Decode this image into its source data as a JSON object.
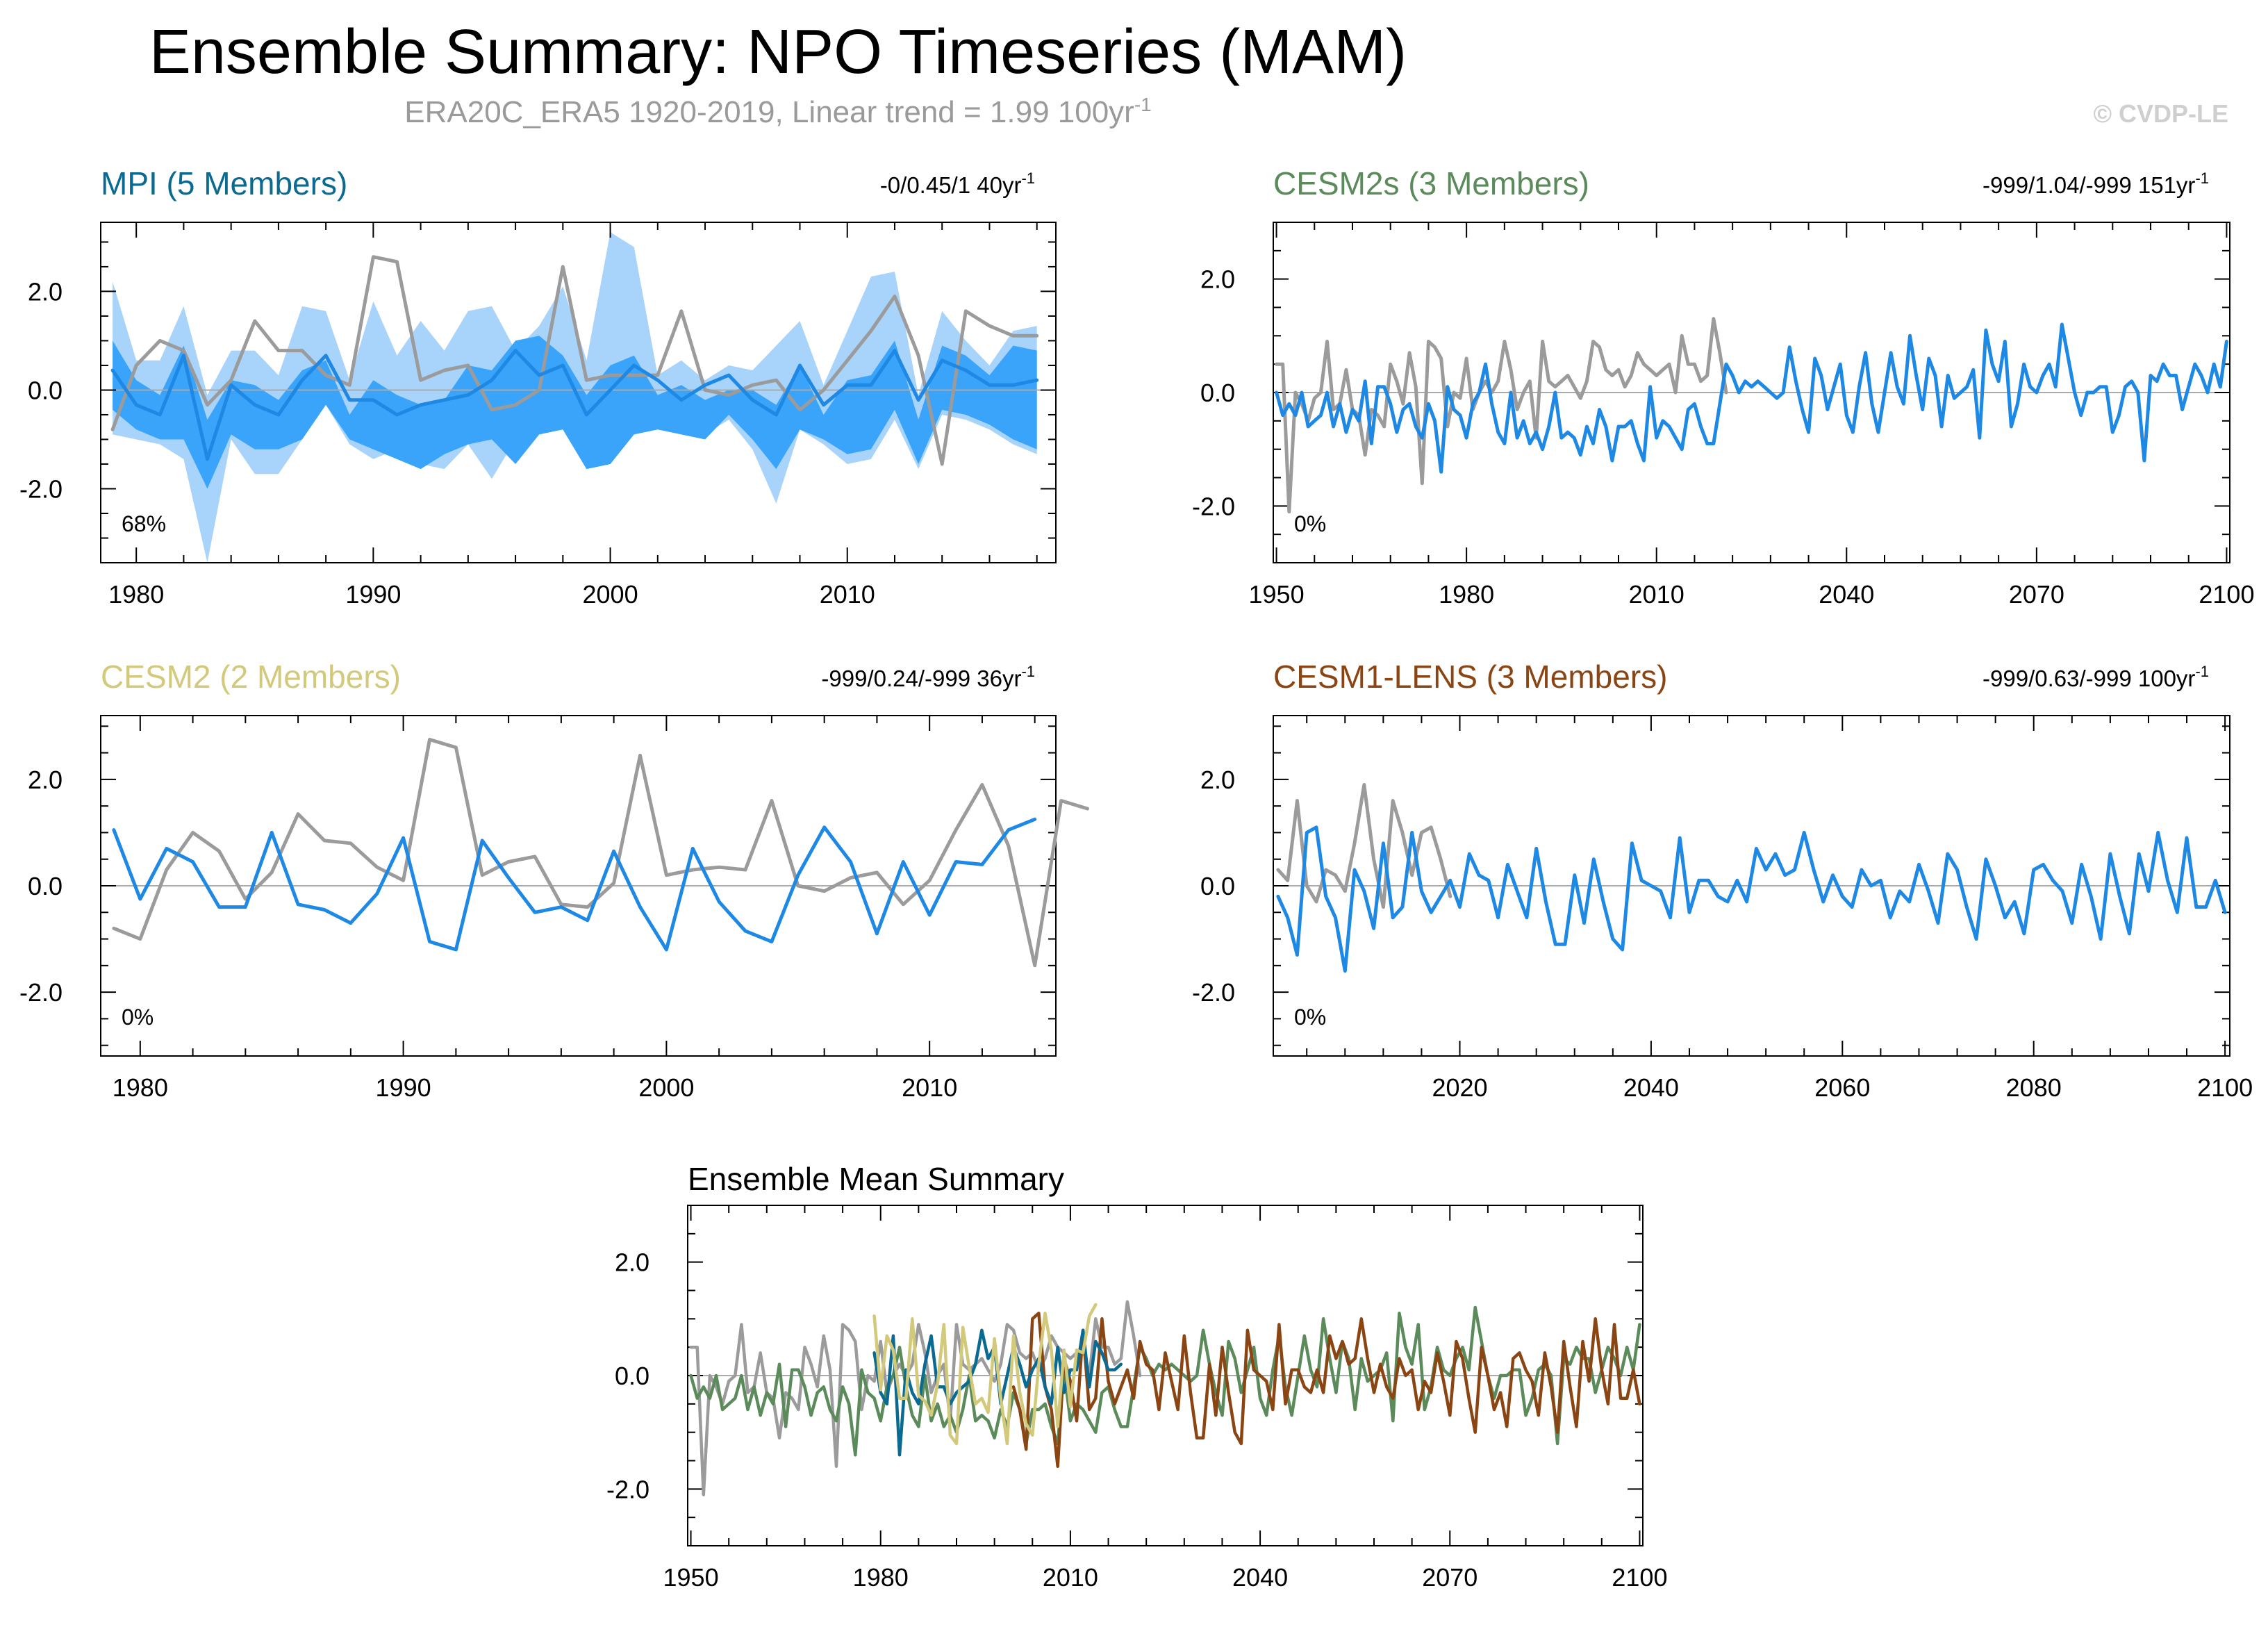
{
  "title": "Ensemble Summary: NPO Timeseries (MAM)",
  "subtitle": "ERA20C_ERA5 1920-2019, Linear trend = 1.99 100yr",
  "subtitle_sup": "-1",
  "copyright": "© CVDP-LE",
  "colors": {
    "obs": "#9b9b9b",
    "ens_mean_line": "#1e88e5",
    "band_outer": "#a8d4fb",
    "band_inner": "#3aa3fa",
    "zero_line": "#aaaaaa",
    "MPI": "#0b6a92",
    "CESM2s": "#5b8a5b",
    "CESM2": "#d3c97a",
    "CESM1-LENS": "#8a4513"
  },
  "chart_data": [
    {
      "type": "line",
      "name": "MPI",
      "title": "MPI (5 Members)",
      "stats": "-0/0.45/1 40yr",
      "stats_sup": "-1",
      "pct_label": "68%",
      "xlim": [
        1978.5,
        2018.8
      ],
      "ylim": [
        -3.5,
        3.4
      ],
      "xticks": [
        1980,
        1990,
        2000,
        2010
      ],
      "yticks": [
        2.0,
        0.0,
        -2.0
      ],
      "ytick_labels": [
        "2.0",
        "0.0",
        "-2.0"
      ],
      "x": [
        1979,
        1980,
        1981,
        1982,
        1983,
        1984,
        1985,
        1986,
        1987,
        1988,
        1989,
        1990,
        1991,
        1992,
        1993,
        1994,
        1995,
        1996,
        1997,
        1998,
        1999,
        2000,
        2001,
        2002,
        2003,
        2004,
        2005,
        2006,
        2007,
        2008,
        2009,
        2010,
        2011,
        2012,
        2013,
        2014,
        2015,
        2016,
        2017,
        2018
      ],
      "band_outer_upper": [
        2.2,
        0.6,
        0.6,
        1.7,
        -0.1,
        0.8,
        0.8,
        0.3,
        1.7,
        1.6,
        0.2,
        1.8,
        0.7,
        1.4,
        0.8,
        1.6,
        1.7,
        0.8,
        1.3,
        2.1,
        0.6,
        3.2,
        2.9,
        0.3,
        0.6,
        0.2,
        0.5,
        0.4,
        0.9,
        1.4,
        0.1,
        1.2,
        2.3,
        2.4,
        -0.1,
        1.6,
        1.0,
        0.5,
        1.2,
        1.3
      ],
      "band_inner_upper": [
        1.0,
        0.2,
        -0.1,
        0.9,
        -0.6,
        0.2,
        0.1,
        -0.2,
        0.4,
        0.6,
        -0.5,
        0.2,
        -0.1,
        -0.3,
        -0.2,
        0.5,
        0.4,
        1.0,
        1.1,
        0.7,
        -0.1,
        0.5,
        0.7,
        -0.1,
        0.1,
        -0.2,
        0.0,
        0.0,
        -0.3,
        0.5,
        -0.5,
        0.2,
        0.3,
        1.0,
        -0.6,
        0.9,
        0.7,
        0.3,
        0.9,
        0.8
      ],
      "band_inner_lower": [
        -0.4,
        -0.8,
        -1.0,
        -1.0,
        -2.0,
        -0.9,
        -1.2,
        -1.2,
        -1.0,
        -0.3,
        -1.0,
        -1.2,
        -1.4,
        -1.6,
        -1.3,
        -1.1,
        -1.0,
        -1.5,
        -0.9,
        -0.8,
        -1.6,
        -1.5,
        -0.9,
        -0.8,
        -0.9,
        -1.0,
        -0.5,
        -1.0,
        -1.6,
        -0.8,
        -1.0,
        -1.3,
        -1.2,
        -0.4,
        -1.5,
        -0.4,
        -0.5,
        -0.7,
        -1.0,
        -1.2
      ],
      "band_outer_lower": [
        -0.9,
        -1.0,
        -1.1,
        -1.4,
        -3.5,
        -1.0,
        -1.7,
        -1.7,
        -1.0,
        -0.3,
        -1.1,
        -1.4,
        -1.2,
        -1.5,
        -1.6,
        -1.1,
        -1.8,
        -1.0,
        -0.6,
        -0.8,
        -1.6,
        -1.5,
        -0.8,
        -0.7,
        -0.8,
        -0.9,
        -0.6,
        -1.2,
        -2.3,
        -0.8,
        -1.1,
        -1.5,
        -1.4,
        -0.6,
        -1.6,
        -0.5,
        -0.6,
        -0.8,
        -1.1,
        -1.3
      ],
      "ens_mean": [
        0.4,
        -0.3,
        -0.5,
        0.7,
        -1.4,
        0.1,
        -0.3,
        -0.5,
        0.2,
        0.7,
        -0.2,
        -0.2,
        -0.5,
        -0.3,
        -0.2,
        -0.1,
        0.2,
        0.8,
        0.3,
        0.5,
        -0.5,
        0.0,
        0.5,
        0.2,
        -0.2,
        0.1,
        0.3,
        -0.2,
        -0.5,
        0.5,
        -0.3,
        0.1,
        0.1,
        0.8,
        -0.2,
        0.6,
        0.4,
        0.1,
        0.1,
        0.2
      ],
      "obs": [
        -0.8,
        0.5,
        1.0,
        0.8,
        -0.3,
        0.2,
        1.4,
        0.8,
        0.8,
        0.3,
        0.1,
        2.7,
        2.6,
        0.2,
        0.4,
        0.5,
        -0.4,
        -0.3,
        0.0,
        2.5,
        0.2,
        0.3,
        0.3,
        0.3,
        1.6,
        0.0,
        -0.1,
        0.1,
        0.2,
        -0.4,
        0.0,
        0.6,
        1.2,
        1.9,
        0.7,
        -1.5,
        1.6,
        1.3,
        1.1,
        1.1
      ]
    },
    {
      "type": "line",
      "name": "CESM2s",
      "title": "CESM2s (3 Members)",
      "stats": "-999/1.04/-999 151yr",
      "stats_sup": "-1",
      "pct_label": "0%",
      "xlim": [
        1949.5,
        2100.5
      ],
      "ylim": [
        -3.0,
        3.0
      ],
      "xticks": [
        1950,
        1980,
        2010,
        2040,
        2070,
        2100
      ],
      "yticks": [
        2.0,
        0.0,
        -2.0
      ],
      "ytick_labels": [
        "2.0",
        "0.0",
        "-2.0"
      ],
      "x_start": 1950,
      "ens_mean": [
        0.0,
        -0.4,
        -0.2,
        -0.4,
        0.0,
        -0.6,
        -0.5,
        -0.4,
        0.0,
        -0.6,
        -0.2,
        -0.7,
        -0.3,
        -0.5,
        0.2,
        -0.9,
        0.1,
        0.1,
        -0.2,
        -0.7,
        -0.3,
        -0.2,
        -0.6,
        -0.8,
        -0.2,
        -0.5,
        -1.4,
        0.1,
        -0.3,
        -0.4,
        -0.8,
        -0.2,
        0.0,
        0.5,
        -0.2,
        -0.7,
        -0.9,
        0.0,
        -0.8,
        -0.5,
        -0.9,
        -0.7,
        -1.0,
        -0.6,
        0.0,
        -0.8,
        -0.7,
        -0.8,
        -1.1,
        -0.6,
        -0.9,
        -0.3,
        -0.6,
        -1.2,
        -0.6,
        -0.6,
        -0.5,
        -0.9,
        -1.2,
        0.1,
        -0.8,
        -0.5,
        -0.6,
        -0.8,
        -1.0,
        -0.3,
        -0.2,
        -0.6,
        -0.9,
        -0.9,
        -0.2,
        0.5,
        0.3,
        0.0,
        0.2,
        0.1,
        0.2,
        0.1,
        0.0,
        -0.1,
        0.0,
        0.8,
        0.2,
        -0.3,
        -0.7,
        0.6,
        0.3,
        -0.3,
        0.1,
        0.5,
        -0.4,
        -0.7,
        0.1,
        0.7,
        -0.2,
        -0.7,
        0.0,
        0.7,
        0.1,
        -0.2,
        1.0,
        0.3,
        -0.3,
        0.6,
        0.3,
        -0.6,
        0.3,
        -0.1,
        0.0,
        0.1,
        0.4,
        -0.8,
        1.1,
        0.5,
        0.2,
        0.9,
        -0.6,
        -0.2,
        0.5,
        0.1,
        0.0,
        0.3,
        0.5,
        0.1,
        1.2,
        0.6,
        0.0,
        -0.4,
        0.0,
        0.0,
        0.1,
        0.1,
        -0.7,
        -0.4,
        0.1,
        0.2,
        0.0,
        -1.2,
        0.3,
        0.2,
        0.5,
        0.3,
        0.3,
        -0.3,
        0.1,
        0.5,
        0.3,
        0.0,
        0.5,
        0.1,
        0.9
      ],
      "obs_x_start": 1950,
      "obs": [
        0.5,
        0.5,
        -2.1,
        0.0,
        -0.2,
        -0.5,
        -0.1,
        0.0,
        0.9,
        -0.3,
        -0.2,
        0.4,
        -0.3,
        -0.4,
        -1.1,
        -0.3,
        -0.4,
        -0.6,
        0.5,
        0.2,
        -0.2,
        0.7,
        0.1,
        -1.6,
        0.9,
        0.8,
        0.6,
        -0.6,
        0.0,
        -0.1,
        0.6,
        -0.3,
        0.0,
        0.2,
        0.0,
        0.2,
        0.9,
        0.4,
        -0.3,
        0.0,
        0.2,
        -0.8,
        0.9,
        0.2,
        0.1,
        0.2,
        0.3,
        0.1,
        -0.1,
        0.2,
        0.9,
        0.8,
        0.4,
        0.3,
        0.4,
        0.1,
        0.3,
        0.7,
        0.5,
        0.4,
        0.3,
        0.4,
        0.5,
        0.0,
        1.0,
        0.5,
        0.5,
        0.2,
        0.3,
        1.3,
        0.7,
        0.0
      ]
    },
    {
      "type": "line",
      "name": "CESM2",
      "title": "CESM2 (2 Members)",
      "stats": "-999/0.24/-999 36yr",
      "stats_sup": "-1",
      "pct_label": "0%",
      "xlim": [
        1978.5,
        2014.8
      ],
      "ylim": [
        -3.2,
        3.2
      ],
      "xticks": [
        1980,
        1990,
        2000,
        2010
      ],
      "yticks": [
        2.0,
        0.0,
        -2.0
      ],
      "ytick_labels": [
        "2.0",
        "0.0",
        "-2.0"
      ],
      "x_start": 1979,
      "ens_mean": [
        1.05,
        -0.25,
        0.7,
        0.45,
        -0.4,
        -0.4,
        1.0,
        -0.35,
        -0.45,
        -0.7,
        -0.15,
        0.9,
        -1.05,
        -1.2,
        0.85,
        0.15,
        -0.5,
        -0.4,
        -0.65,
        0.65,
        -0.4,
        -1.2,
        0.7,
        -0.3,
        -0.85,
        -1.05,
        0.2,
        1.1,
        0.45,
        -0.9,
        0.45,
        -0.55,
        0.45,
        0.4,
        1.05,
        1.25
      ],
      "obs": [
        -0.8,
        -1.0,
        0.3,
        1.0,
        0.65,
        -0.25,
        0.25,
        1.35,
        0.85,
        0.8,
        0.35,
        0.1,
        2.75,
        2.6,
        0.2,
        0.45,
        0.55,
        -0.35,
        -0.4,
        0.05,
        2.45,
        0.2,
        0.3,
        0.35,
        0.3,
        1.6,
        0.0,
        -0.1,
        0.15,
        0.25,
        -0.35,
        0.1,
        1.05,
        1.9,
        0.75,
        -1.5,
        1.6,
        1.45
      ]
    },
    {
      "type": "line",
      "name": "CESM1-LENS",
      "title": "CESM1-LENS (3 Members)",
      "stats": "-999/0.63/-999 100yr",
      "stats_sup": "-1",
      "pct_label": "0%",
      "xlim": [
        2000.5,
        2100.5
      ],
      "ylim": [
        -3.2,
        3.2
      ],
      "xticks": [
        2020,
        2040,
        2060,
        2080,
        2100
      ],
      "yticks": [
        2.0,
        0.0,
        -2.0
      ],
      "ytick_labels": [
        "2.0",
        "0.0",
        "-2.0"
      ],
      "x_start": 2001,
      "ens_mean": [
        -0.2,
        -0.6,
        -1.3,
        1.0,
        1.1,
        -0.2,
        -0.6,
        -1.6,
        0.3,
        -0.1,
        -0.8,
        0.8,
        -0.6,
        -0.4,
        1.0,
        -0.1,
        -0.5,
        -0.2,
        0.1,
        -0.4,
        0.6,
        0.2,
        0.1,
        -0.6,
        0.4,
        -0.1,
        -0.6,
        0.7,
        -0.3,
        -1.1,
        -1.1,
        0.2,
        -0.7,
        0.5,
        -0.3,
        -1.0,
        -1.2,
        0.8,
        0.1,
        0.0,
        -0.1,
        -0.6,
        0.9,
        -0.5,
        0.1,
        0.1,
        -0.2,
        -0.3,
        0.1,
        -0.3,
        0.7,
        0.3,
        0.6,
        0.2,
        0.3,
        1.0,
        0.3,
        -0.3,
        0.2,
        -0.2,
        -0.4,
        0.3,
        0.0,
        0.1,
        -0.6,
        -0.1,
        -0.3,
        0.4,
        -0.1,
        -0.7,
        0.6,
        0.3,
        -0.4,
        -1.0,
        0.5,
        0.0,
        -0.6,
        -0.3,
        -0.9,
        0.3,
        0.4,
        0.1,
        -0.1,
        -0.7,
        0.4,
        -0.2,
        -1.0,
        0.6,
        -0.2,
        -0.9,
        0.6,
        -0.1,
        1.0,
        0.1,
        -0.5,
        0.9,
        -0.4,
        -0.4,
        0.1,
        -0.5
      ],
      "obs_x_start": 2001,
      "obs": [
        0.3,
        0.1,
        1.6,
        0.0,
        -0.3,
        0.3,
        0.2,
        -0.1,
        0.8,
        1.9,
        0.5,
        -0.4,
        1.6,
        1.0,
        0.2,
        1.0,
        1.1,
        0.5,
        -0.2
      ]
    },
    {
      "type": "line",
      "name": "summary",
      "title": "Ensemble Mean Summary",
      "xlim": [
        1949.5,
        2100.5
      ],
      "ylim": [
        -3.0,
        3.0
      ],
      "xticks": [
        1950,
        1980,
        2010,
        2040,
        2070,
        2100
      ],
      "yticks": [
        2.0,
        0.0,
        -2.0
      ],
      "ytick_labels": [
        "2.0",
        "0.0",
        "-2.0"
      ],
      "series": [
        {
          "name": "ERA20C_ERA5",
          "color_key": "obs",
          "source": "CESM2s.obs"
        },
        {
          "name": "CESM2s",
          "color_key": "CESM2s",
          "source": "CESM2s.ens_mean"
        },
        {
          "name": "CESM1-LENS",
          "color_key": "CESM1-LENS",
          "source": "CESM1-LENS.ens_mean"
        },
        {
          "name": "MPI",
          "color_key": "MPI",
          "source": "MPI.ens_mean"
        },
        {
          "name": "CESM2",
          "color_key": "CESM2",
          "source": "CESM2.ens_mean"
        }
      ]
    }
  ]
}
